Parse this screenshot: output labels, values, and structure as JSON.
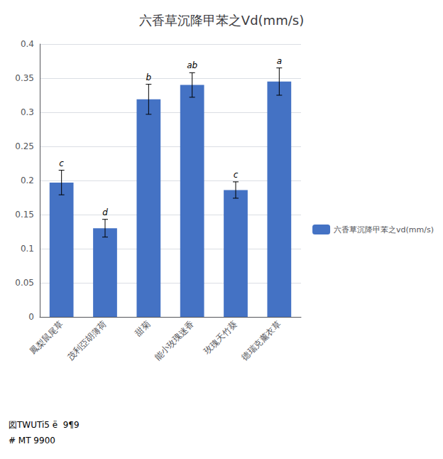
{
  "chart_data": {
    "type": "bar",
    "title": "六香草沉降甲苯之Vd(mm/s)",
    "categories": [
      "鳳梨鼠尾草",
      "茂利亞胡薄荷",
      "甜菊",
      "能小玫瑰迷香",
      "玫瑰天竹葵",
      "德瑞克薰衣草"
    ],
    "series": [
      {
        "name": "六香草沉降甲苯之vd(mm/s)",
        "color": "#4472C4",
        "values": [
          0.197,
          0.13,
          0.319,
          0.34,
          0.186,
          0.345
        ],
        "errors": [
          0.018,
          0.013,
          0.022,
          0.018,
          0.012,
          0.02
        ],
        "stat_labels": [
          "c",
          "d",
          "b",
          "ab",
          "c",
          "a"
        ]
      }
    ],
    "ylim": [
      0,
      0.4
    ],
    "yticks": [
      0,
      0.05,
      0.1,
      0.15,
      0.2,
      0.25,
      0.3,
      0.35,
      0.4
    ],
    "grid": true,
    "legend": "right",
    "annotations": [
      "図TWUTi5 ë  9¶9",
      "# MT 9900"
    ]
  }
}
